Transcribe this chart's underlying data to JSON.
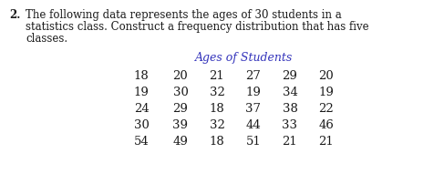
{
  "question_number": "2.",
  "question_text_line1": "The following data represents the ages of 30 students in a",
  "question_text_line2": "statistics class. Construct a frequency distribution that has five",
  "question_text_line3": "classes.",
  "table_title": "Ages of Students",
  "table_title_color": "#3333bb",
  "rows": [
    [
      "18",
      "20",
      "21",
      "27",
      "29",
      "20"
    ],
    [
      "19",
      "30",
      "32",
      "19",
      "34",
      "19"
    ],
    [
      "24",
      "29",
      "18",
      "37",
      "38",
      "22"
    ],
    [
      "30",
      "39",
      "32",
      "44",
      "33",
      "46"
    ],
    [
      "54",
      "49",
      "18",
      "51",
      "21",
      "21"
    ]
  ],
  "body_color": "#1a1a1a",
  "background_color": "#ffffff",
  "question_fontsize": 8.5,
  "table_title_fontsize": 9.0,
  "data_fontsize": 9.5,
  "serif_font": "DejaVu Serif"
}
